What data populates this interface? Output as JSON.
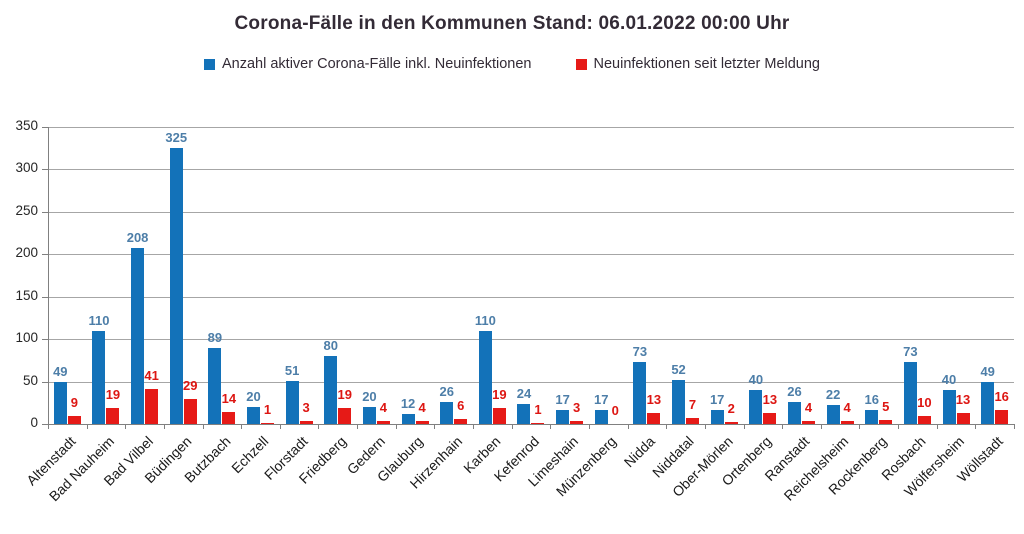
{
  "title": "Corona-Fälle in den Kommunen Stand: 06.01.2022 00:00 Uhr",
  "legend": {
    "items": [
      {
        "label": "Anzahl aktiver Corona-Fälle inkl. Neuinfektionen",
        "color": "#1372b9"
      },
      {
        "label": "Neuinfektionen seit letzter Meldung",
        "color": "#e61a17"
      }
    ]
  },
  "colors": {
    "blue_bar": "#1372b9",
    "red_bar": "#e61a17",
    "blue_value_label": "#4d7ea8",
    "red_value_label": "#dd1612",
    "gridline": "#a6a6a6",
    "axis": "#808080",
    "title_text": "#332b36",
    "tick_text": "#262626"
  },
  "chart_data": {
    "type": "bar",
    "title": "Corona-Fälle in den Kommunen Stand: 06.01.2022 00:00 Uhr",
    "xlabel": "",
    "ylabel": "",
    "ylim": [
      0,
      350
    ],
    "yticks": [
      0,
      50,
      100,
      150,
      200,
      250,
      300,
      350
    ],
    "grid": true,
    "legend_position": "top",
    "categories": [
      "Altenstadt",
      "Bad Nauheim",
      "Bad Vilbel",
      "Büdingen",
      "Butzbach",
      "Echzell",
      "Florstadt",
      "Friedberg",
      "Gedern",
      "Glauburg",
      "Hirzenhain",
      "Karben",
      "Kefenrod",
      "Limeshain",
      "Münzenberg",
      "Nidda",
      "Niddatal",
      "Ober-Mörlen",
      "Ortenberg",
      "Ranstadt",
      "Reichelsheim",
      "Rockenberg",
      "Rosbach",
      "Wölfersheim",
      "Wöllstadt"
    ],
    "series": [
      {
        "name": "Anzahl aktiver Corona-Fälle inkl. Neuinfektionen",
        "color": "#1372b9",
        "values": [
          49,
          110,
          208,
          325,
          89,
          20,
          51,
          80,
          20,
          12,
          26,
          110,
          24,
          17,
          17,
          73,
          52,
          17,
          40,
          26,
          22,
          16,
          73,
          40,
          49
        ]
      },
      {
        "name": "Neuinfektionen seit letzter Meldung",
        "color": "#e61a17",
        "values": [
          9,
          19,
          41,
          29,
          14,
          1,
          3,
          19,
          4,
          4,
          6,
          19,
          1,
          3,
          0,
          13,
          7,
          2,
          13,
          4,
          4,
          5,
          10,
          13,
          16
        ]
      }
    ]
  }
}
